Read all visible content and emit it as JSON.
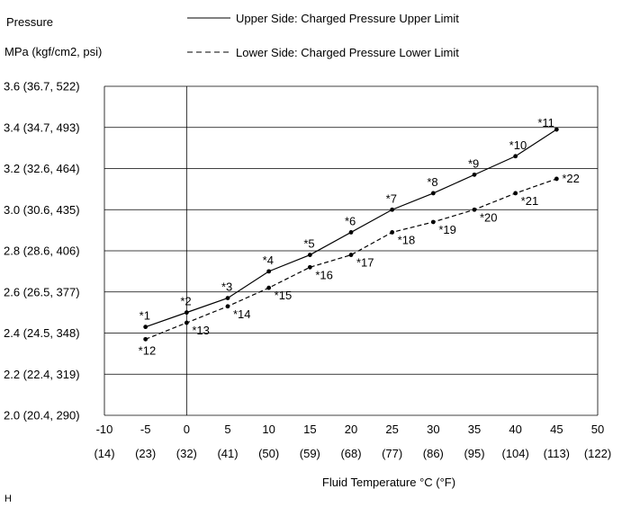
{
  "chart_data": {
    "type": "line",
    "ylabel_line1": "Pressure",
    "ylabel_line2": "MPa (kgf/cm2, psi)",
    "xlabel": "Fluid Temperature °C (°F)",
    "corner_mark": "H",
    "x_ticks": [
      {
        "c": "-10",
        "f": "(14)"
      },
      {
        "c": "-5",
        "f": "(23)"
      },
      {
        "c": "0",
        "f": "(32)"
      },
      {
        "c": "5",
        "f": "(41)"
      },
      {
        "c": "10",
        "f": "(50)"
      },
      {
        "c": "15",
        "f": "(59)"
      },
      {
        "c": "20",
        "f": "(68)"
      },
      {
        "c": "25",
        "f": "(77)"
      },
      {
        "c": "30",
        "f": "(86)"
      },
      {
        "c": "35",
        "f": "(95)"
      },
      {
        "c": "40",
        "f": "(104)"
      },
      {
        "c": "45",
        "f": "(113)"
      },
      {
        "c": "50",
        "f": "(122)"
      }
    ],
    "y_ticks": [
      "2.0 (20.4, 290)",
      "2.2 (22.4, 319)",
      "2.4 (24.5, 348)",
      "2.6 (26.5, 377)",
      "2.8 (28.6, 406)",
      "3.0 (30.6, 435)",
      "3.2 (32.6, 464)",
      "3.4 (34.7, 493)",
      "3.6 (36.7, 522)"
    ],
    "xlim": [
      -10,
      50
    ],
    "ylim": [
      2.0,
      3.6
    ],
    "grid": "horizontal",
    "legend_placement": "top",
    "series": [
      {
        "name": "Upper Side: Charged Pressure Upper Limit",
        "style": "solid",
        "x": [
          -5,
          0,
          5,
          10,
          15,
          20,
          25,
          30,
          35,
          40,
          45
        ],
        "y": [
          2.43,
          2.5,
          2.57,
          2.7,
          2.78,
          2.89,
          3.0,
          3.08,
          3.17,
          3.26,
          3.39
        ],
        "labels": [
          "*1",
          "*2",
          "*3",
          "*4",
          "*5",
          "*6",
          "*7",
          "*8",
          "*9",
          "*10",
          "*11"
        ]
      },
      {
        "name": "Lower Side: Charged Pressure Lower Limit",
        "style": "dashed",
        "x": [
          -5,
          0,
          5,
          10,
          15,
          20,
          25,
          30,
          35,
          40,
          45
        ],
        "y": [
          2.37,
          2.45,
          2.53,
          2.62,
          2.72,
          2.78,
          2.89,
          2.94,
          3.0,
          3.08,
          3.15
        ],
        "labels": [
          "*12",
          "*13",
          "*14",
          "*15",
          "*16",
          "*17",
          "*18",
          "*19",
          "*20",
          "*21",
          "*22"
        ]
      }
    ]
  }
}
